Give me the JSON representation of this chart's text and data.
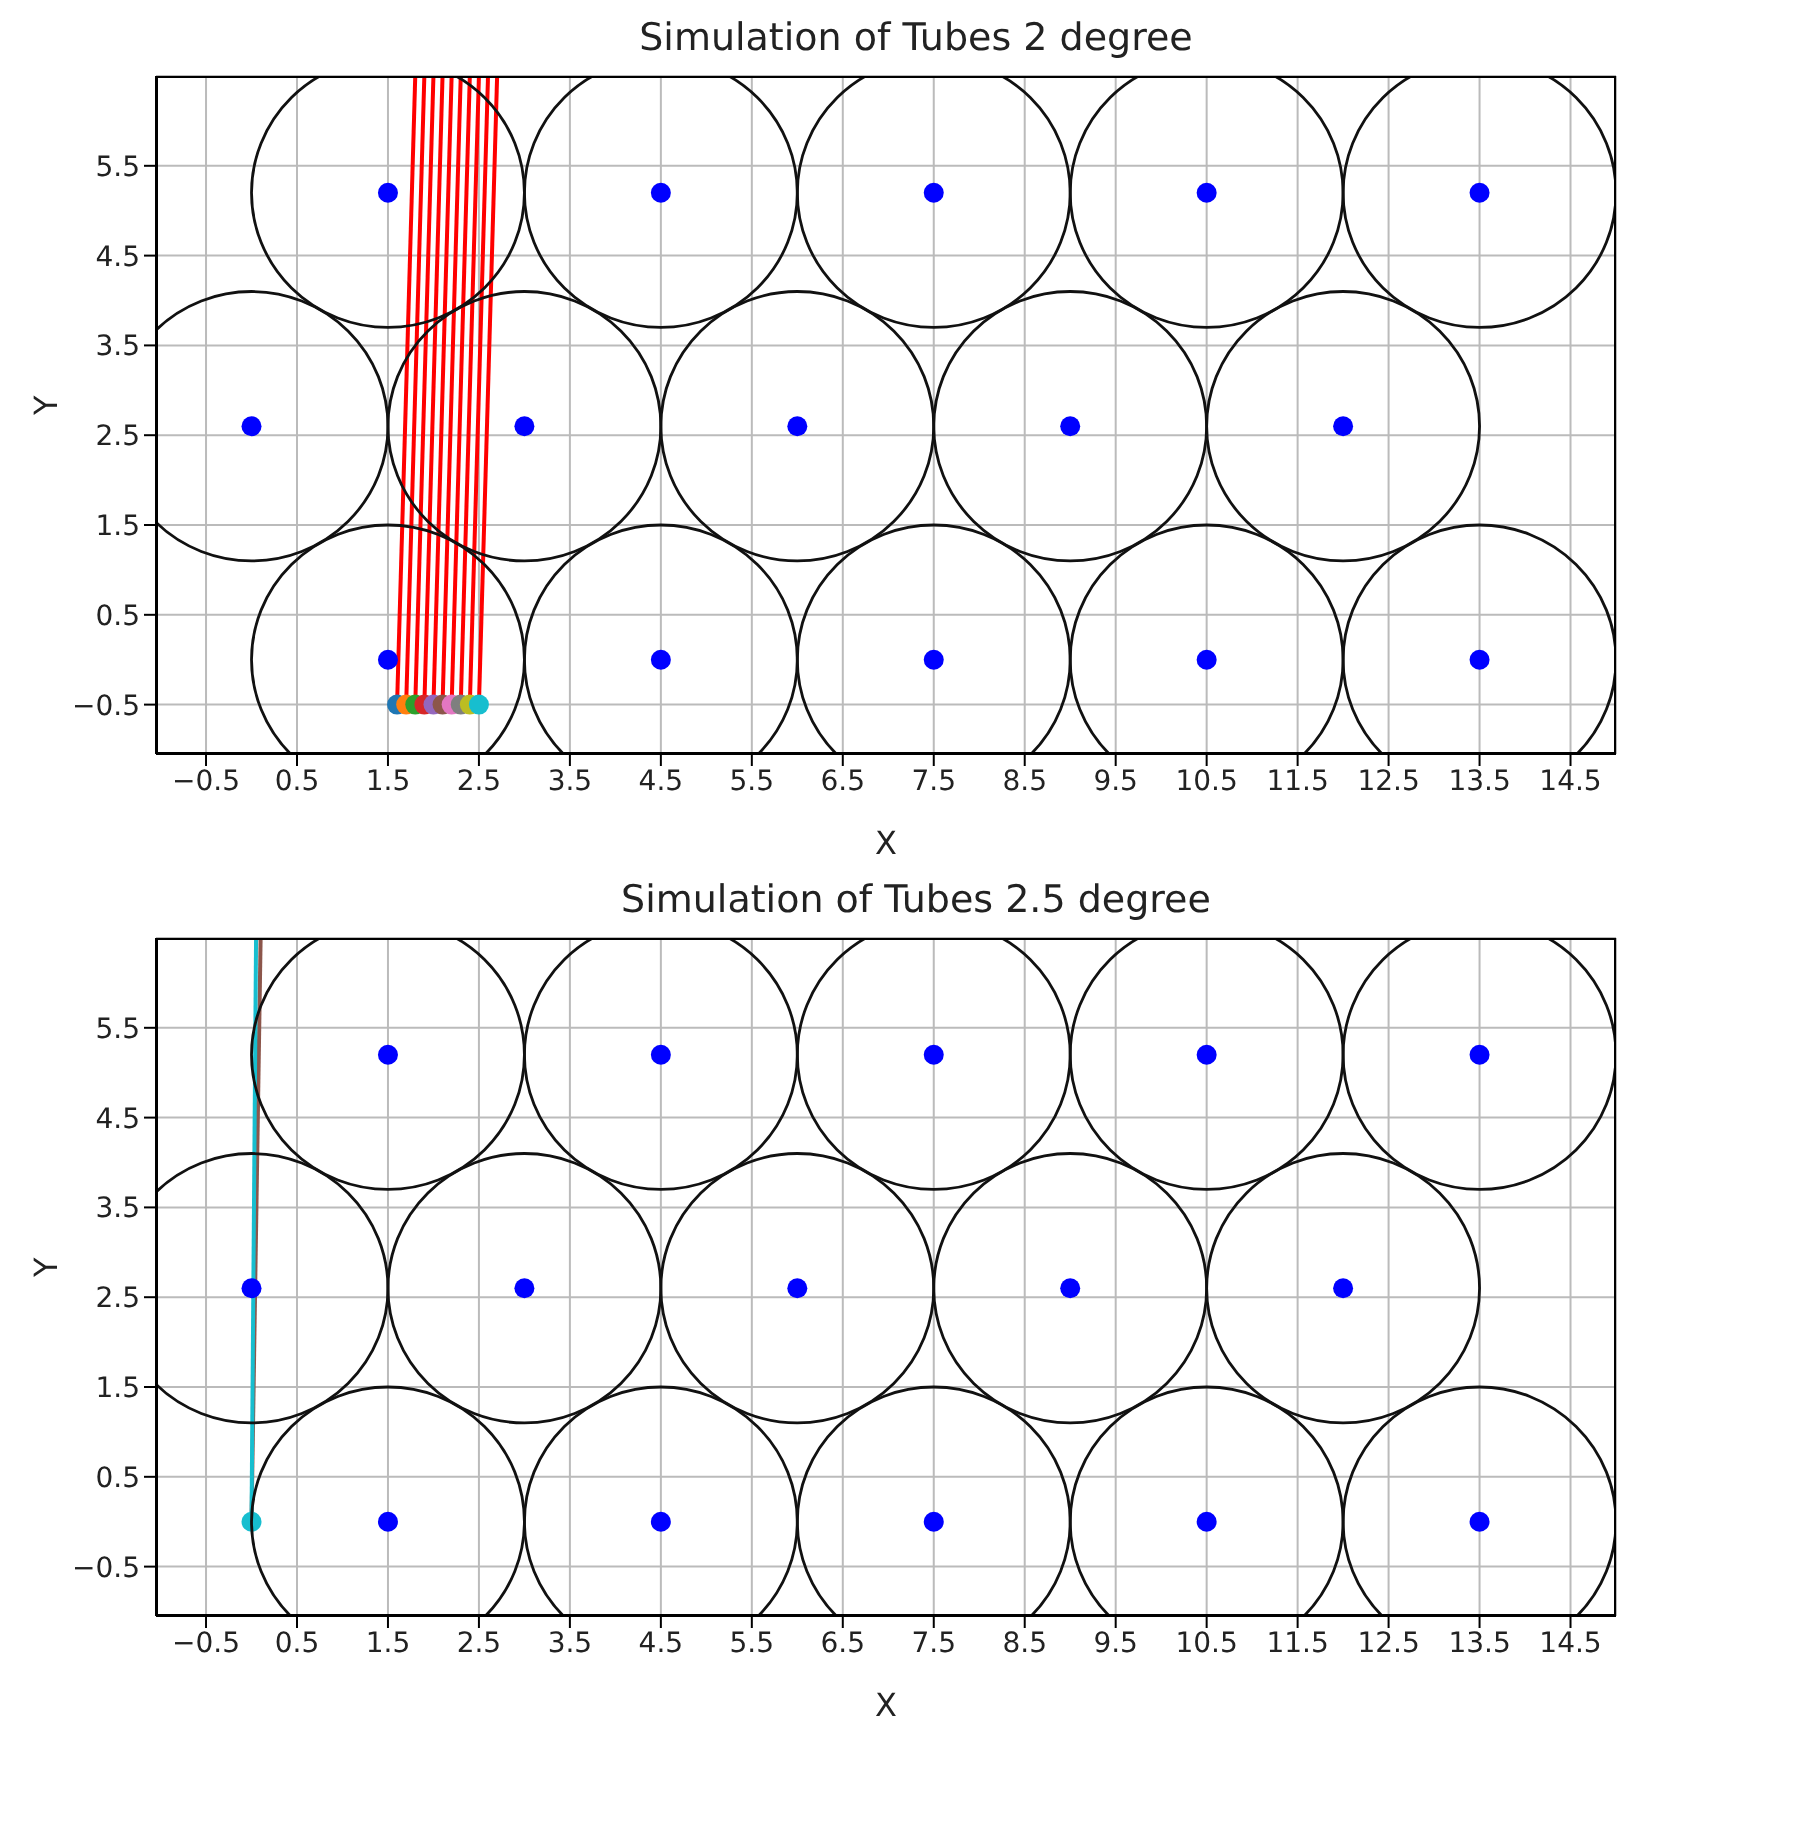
{
  "chart_data": [
    {
      "type": "scatter",
      "title": "Simulation of Tubes 2 degree",
      "xlabel": "X",
      "ylabel": "Y",
      "xlim": [
        -1.05,
        15
      ],
      "ylim": [
        -1.05,
        6.5
      ],
      "xticks": [
        -0.5,
        0.5,
        1.5,
        2.5,
        3.5,
        4.5,
        5.5,
        6.5,
        7.5,
        8.5,
        9.5,
        10.5,
        11.5,
        12.5,
        13.5,
        14.5
      ],
      "yticks": [
        -0.5,
        0.5,
        1.5,
        2.5,
        3.5,
        4.5,
        5.5
      ],
      "grid": true,
      "marker": "circle",
      "series": [
        {
          "color": "#0000ff",
          "x": [
            1.5,
            4.5,
            7.5,
            10.5,
            13.5,
            0,
            3,
            6,
            9,
            12,
            1.5,
            4.5,
            7.5,
            10.5,
            13.5
          ],
          "values": [
            0,
            0,
            0,
            0,
            0,
            2.6,
            2.6,
            2.6,
            2.6,
            2.6,
            5.2,
            5.2,
            5.2,
            5.2,
            5.2
          ]
        },
        {
          "type": "line",
          "marker": "none",
          "color": "#ff0000",
          "x": [
            1.6,
            1.8
          ],
          "values": [
            -0.5,
            6.5
          ]
        },
        {
          "type": "line",
          "marker": "none",
          "color": "#ff0000",
          "x": [
            1.7,
            1.9
          ],
          "values": [
            -0.5,
            6.5
          ]
        },
        {
          "type": "line",
          "marker": "none",
          "color": "#ff0000",
          "x": [
            1.8,
            2.0
          ],
          "values": [
            -0.5,
            6.5
          ]
        },
        {
          "type": "line",
          "marker": "none",
          "color": "#ff0000",
          "x": [
            1.9,
            2.1
          ],
          "values": [
            -0.5,
            6.5
          ]
        },
        {
          "type": "line",
          "marker": "none",
          "color": "#ff0000",
          "x": [
            2.0,
            2.2
          ],
          "values": [
            -0.5,
            6.5
          ]
        },
        {
          "type": "line",
          "marker": "none",
          "color": "#ff0000",
          "x": [
            2.1,
            2.3
          ],
          "values": [
            -0.5,
            6.5
          ]
        },
        {
          "type": "line",
          "marker": "none",
          "color": "#ff0000",
          "x": [
            2.2,
            2.4
          ],
          "values": [
            -0.5,
            6.5
          ]
        },
        {
          "type": "line",
          "marker": "none",
          "color": "#ff0000",
          "x": [
            2.3,
            2.5
          ],
          "values": [
            -0.5,
            6.5
          ]
        },
        {
          "type": "line",
          "marker": "none",
          "color": "#ff0000",
          "x": [
            2.4,
            2.6
          ],
          "values": [
            -0.5,
            6.5
          ]
        },
        {
          "type": "line",
          "marker": "none",
          "color": "#ff0000",
          "x": [
            2.5,
            2.7
          ],
          "values": [
            -0.5,
            6.5
          ]
        },
        {
          "x": [
            1.6,
            1.7,
            1.8,
            1.9,
            2.0,
            2.1,
            2.2,
            2.3,
            2.4,
            2.5
          ],
          "values": [
            -0.5,
            -0.5,
            -0.5,
            -0.5,
            -0.5,
            -0.5,
            -0.5,
            -0.5,
            -0.5,
            -0.5
          ],
          "colors": [
            "#1f77b4",
            "#ff7f0e",
            "#2ca02c",
            "#d62728",
            "#9467bd",
            "#8c564b",
            "#e377c2",
            "#7f7f7f",
            "#bcbd22",
            "#17becf"
          ]
        }
      ]
    },
    {
      "type": "scatter",
      "title": "Simulation of Tubes 2.5 degree",
      "xlabel": "X",
      "ylabel": "Y",
      "xlim": [
        -1.05,
        15
      ],
      "ylim": [
        -1.05,
        6.5
      ],
      "xticks": [
        -0.5,
        0.5,
        1.5,
        2.5,
        3.5,
        4.5,
        5.5,
        6.5,
        7.5,
        8.5,
        9.5,
        10.5,
        11.5,
        12.5,
        13.5,
        14.5
      ],
      "yticks": [
        -0.5,
        0.5,
        1.5,
        2.5,
        3.5,
        4.5,
        5.5
      ],
      "grid": true,
      "marker": "circle",
      "series": [
        {
          "color": "#0000ff",
          "x": [
            1.5,
            4.5,
            7.5,
            10.5,
            13.5,
            0,
            3,
            6,
            9,
            12,
            1.5,
            4.5,
            7.5,
            10.5,
            13.5
          ],
          "values": [
            0,
            0,
            0,
            0,
            0,
            2.6,
            2.6,
            2.6,
            2.6,
            2.6,
            5.2,
            5.2,
            5.2,
            5.2,
            5.2
          ]
        },
        {
          "type": "line",
          "marker": "none",
          "color": "#8c564b",
          "x": [
            0,
            0.1
          ],
          "values": [
            0,
            6.5
          ]
        },
        {
          "type": "line",
          "marker": "none",
          "color": "#17becf",
          "x": [
            0,
            0.05
          ],
          "values": [
            0,
            6.5
          ]
        },
        {
          "x": [
            0
          ],
          "values": [
            0
          ],
          "colors": [
            "#17becf"
          ]
        }
      ]
    }
  ]
}
